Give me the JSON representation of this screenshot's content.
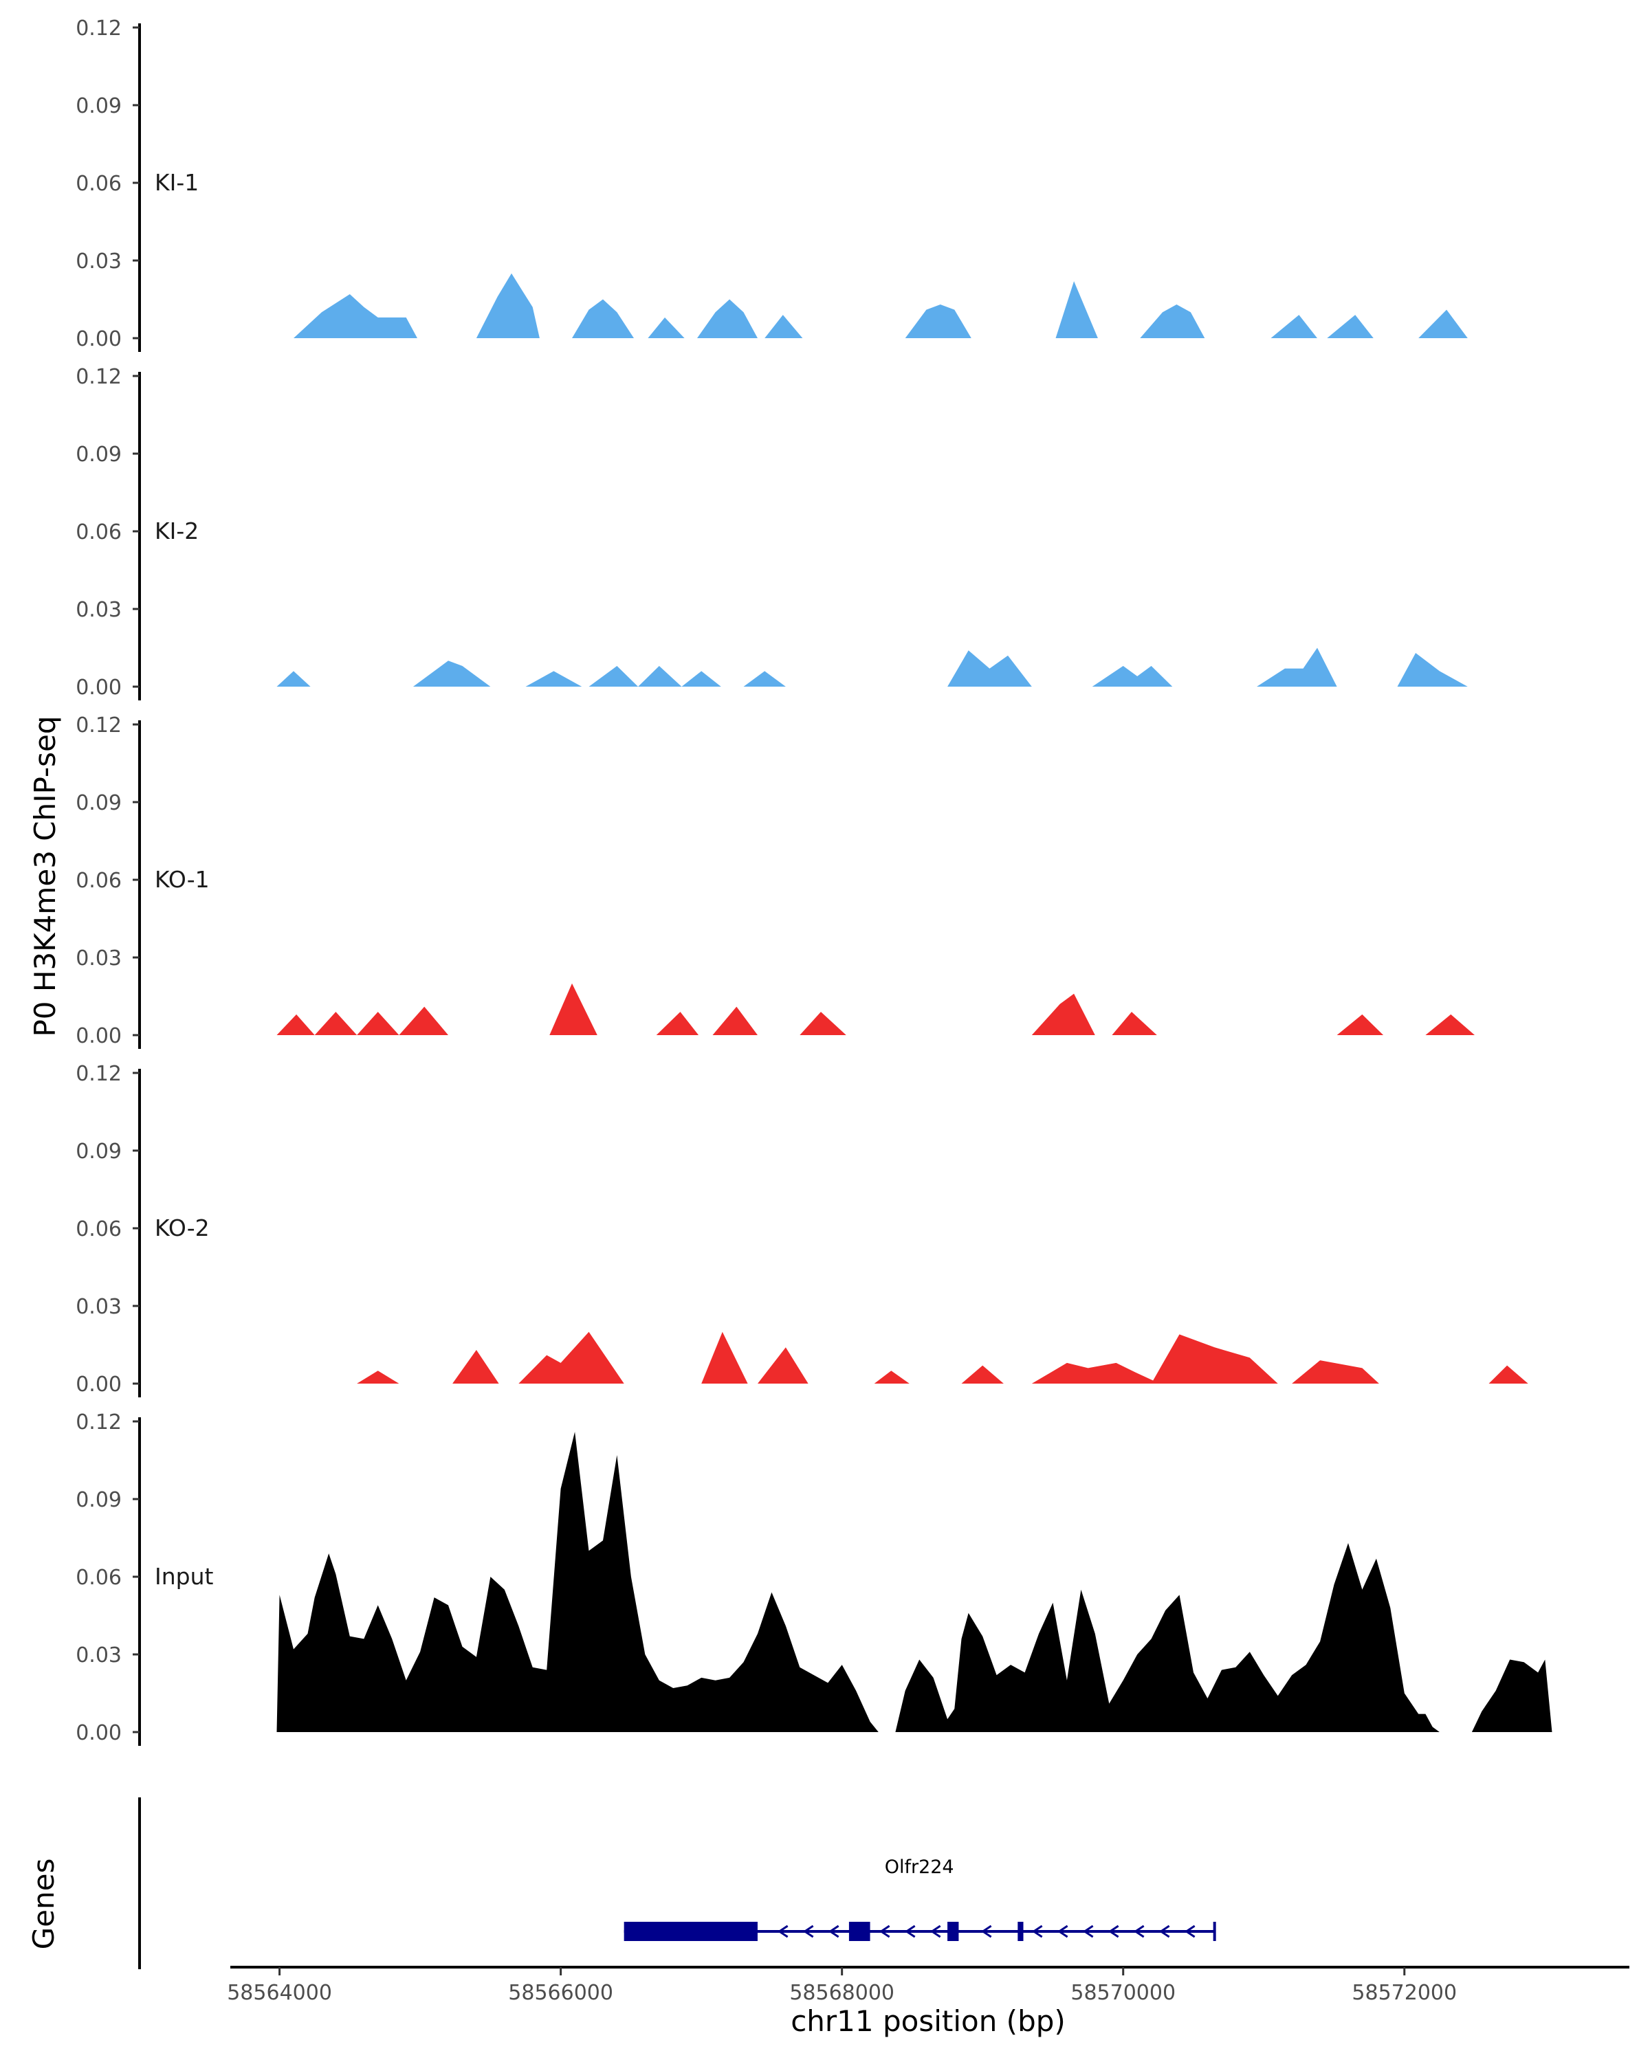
{
  "chart_data": {
    "type": "area",
    "ylabel": "P0 H3K4me3 ChIP-seq",
    "xlabel": "chr11 position (bp)",
    "xlim": [
      58563650,
      58573600
    ],
    "x_ticks": [
      58564000,
      58566000,
      58568000,
      58570000,
      58572000
    ],
    "x_tick_labels": [
      "58564000",
      "58566000",
      "58568000",
      "58570000",
      "58572000"
    ],
    "ylim": [
      0,
      0.12
    ],
    "y_ticks": [
      0.0,
      0.03,
      0.06,
      0.09,
      0.12
    ],
    "y_tick_labels": [
      "0.00",
      "0.03",
      "0.06",
      "0.09",
      "0.12"
    ],
    "series": [
      {
        "name": "KI-1",
        "color": "#5dadec",
        "peaks": [
          {
            "x": [
              58564100,
              58564300,
              58564500,
              58564600,
              58564700,
              58564900,
              58564980
            ],
            "y": [
              0,
              0.01,
              0.017,
              0.012,
              0.008,
              0.008,
              0
            ]
          },
          {
            "x": [
              58565400,
              58565550,
              58565650,
              58565800,
              58565850
            ],
            "y": [
              0,
              0.016,
              0.025,
              0.012,
              0
            ]
          },
          {
            "x": [
              58566080,
              58566200,
              58566300,
              58566400,
              58566520
            ],
            "y": [
              0,
              0.011,
              0.015,
              0.01,
              0
            ]
          },
          {
            "x": [
              58566620,
              58566740,
              58566880
            ],
            "y": [
              0,
              0.008,
              0
            ]
          },
          {
            "x": [
              58566970,
              58567100,
              58567200,
              58567300,
              58567400
            ],
            "y": [
              0,
              0.01,
              0.015,
              0.01,
              0
            ]
          },
          {
            "x": [
              58567450,
              58567580,
              58567720
            ],
            "y": [
              0,
              0.009,
              0
            ]
          },
          {
            "x": [
              58568450,
              58568600,
              58568700,
              58568800,
              58568920
            ],
            "y": [
              0,
              0.011,
              0.013,
              0.011,
              0
            ]
          },
          {
            "x": [
              58569520,
              58569650,
              58569820
            ],
            "y": [
              0,
              0.022,
              0
            ]
          },
          {
            "x": [
              58570120,
              58570280,
              58570380,
              58570480,
              58570580
            ],
            "y": [
              0,
              0.01,
              0.013,
              0.01,
              0
            ]
          },
          {
            "x": [
              58571050,
              58571250,
              58571380
            ],
            "y": [
              0,
              0.009,
              0
            ]
          },
          {
            "x": [
              58571450,
              58571650,
              58571780
            ],
            "y": [
              0,
              0.009,
              0
            ]
          },
          {
            "x": [
              58572100,
              58572300,
              58572450
            ],
            "y": [
              0,
              0.011,
              0
            ]
          }
        ]
      },
      {
        "name": "KI-2",
        "color": "#5dadec",
        "peaks": [
          {
            "x": [
              58563980,
              58564100,
              58564220
            ],
            "y": [
              0,
              0.006,
              0
            ]
          },
          {
            "x": [
              58564950,
              58565200,
              58565300,
              58565500
            ],
            "y": [
              0,
              0.01,
              0.008,
              0
            ]
          },
          {
            "x": [
              58565750,
              58565950,
              58566150
            ],
            "y": [
              0,
              0.006,
              0
            ]
          },
          {
            "x": [
              58566200,
              58566400,
              58566550
            ],
            "y": [
              0,
              0.008,
              0
            ]
          },
          {
            "x": [
              58566550,
              58566700,
              58566860
            ],
            "y": [
              0,
              0.008,
              0
            ]
          },
          {
            "x": [
              58566860,
              58567000,
              58567140
            ],
            "y": [
              0,
              0.006,
              0
            ]
          },
          {
            "x": [
              58567300,
              58567450,
              58567600
            ],
            "y": [
              0,
              0.006,
              0
            ]
          },
          {
            "x": [
              58568750,
              58568900,
              58569050,
              58569180,
              58569350
            ],
            "y": [
              0,
              0.014,
              0.007,
              0.012,
              0
            ]
          },
          {
            "x": [
              58569780,
              58570000,
              58570100,
              58570200,
              58570350
            ],
            "y": [
              0,
              0.008,
              0.004,
              0.008,
              0
            ]
          },
          {
            "x": [
              58570950,
              58571150,
              58571280,
              58571380,
              58571520
            ],
            "y": [
              0,
              0.007,
              0.007,
              0.015,
              0
            ]
          },
          {
            "x": [
              58571950,
              58572080,
              58572250,
              58572450
            ],
            "y": [
              0,
              0.013,
              0.006,
              0
            ]
          }
        ]
      },
      {
        "name": "KO-1",
        "color": "#ee2b2b",
        "peaks": [
          {
            "x": [
              58563980,
              58564120,
              58564250
            ],
            "y": [
              0,
              0.008,
              0
            ]
          },
          {
            "x": [
              58564250,
              58564400,
              58564550
            ],
            "y": [
              0,
              0.009,
              0
            ]
          },
          {
            "x": [
              58564550,
              58564700,
              58564850
            ],
            "y": [
              0,
              0.009,
              0
            ]
          },
          {
            "x": [
              58564850,
              58565030,
              58565200
            ],
            "y": [
              0,
              0.011,
              0
            ]
          },
          {
            "x": [
              58565920,
              58566080,
              58566260
            ],
            "y": [
              0,
              0.02,
              0
            ]
          },
          {
            "x": [
              58566680,
              58566850,
              58566980
            ],
            "y": [
              0,
              0.009,
              0
            ]
          },
          {
            "x": [
              58567080,
              58567250,
              58567400
            ],
            "y": [
              0,
              0.011,
              0
            ]
          },
          {
            "x": [
              58567700,
              58567850,
              58568030
            ],
            "y": [
              0,
              0.009,
              0
            ]
          },
          {
            "x": [
              58569350,
              58569550,
              58569650,
              58569800
            ],
            "y": [
              0,
              0.012,
              0.016,
              0
            ]
          },
          {
            "x": [
              58569920,
              58570060,
              58570240
            ],
            "y": [
              0,
              0.009,
              0
            ]
          },
          {
            "x": [
              58571520,
              58571700,
              58571850
            ],
            "y": [
              0,
              0.008,
              0
            ]
          },
          {
            "x": [
              58572150,
              58572330,
              58572500
            ],
            "y": [
              0,
              0.008,
              0
            ]
          }
        ]
      },
      {
        "name": "KO-2",
        "color": "#ee2b2b",
        "peaks": [
          {
            "x": [
              58564550,
              58564700,
              58564850
            ],
            "y": [
              0,
              0.005,
              0
            ]
          },
          {
            "x": [
              58565230,
              58565400,
              58565560
            ],
            "y": [
              0,
              0.013,
              0
            ]
          },
          {
            "x": [
              58565700,
              58565900,
              58566000,
              58566200,
              58566450
            ],
            "y": [
              0,
              0.011,
              0.008,
              0.02,
              0
            ]
          },
          {
            "x": [
              58567000,
              58567150,
              58567330
            ],
            "y": [
              0,
              0.02,
              0
            ]
          },
          {
            "x": [
              58567400,
              58567600,
              58567760
            ],
            "y": [
              0,
              0.014,
              0
            ]
          },
          {
            "x": [
              58568230,
              58568350,
              58568480
            ],
            "y": [
              0,
              0.005,
              0
            ]
          },
          {
            "x": [
              58568850,
              58569000,
              58569150
            ],
            "y": [
              0,
              0.007,
              0
            ]
          },
          {
            "x": [
              58569350,
              58569600,
              58569750,
              58569950,
              58570100,
              58570260
            ],
            "y": [
              0,
              0.008,
              0.006,
              0.008,
              0.004,
              0
            ]
          },
          {
            "x": [
              58570200,
              58570400,
              58570650,
              58570900,
              58571100
            ],
            "y": [
              0,
              0.019,
              0.014,
              0.01,
              0
            ]
          },
          {
            "x": [
              58571200,
              58571400,
              58571700,
              58571820
            ],
            "y": [
              0,
              0.009,
              0.006,
              0
            ]
          },
          {
            "x": [
              58572600,
              58572730,
              58572880
            ],
            "y": [
              0,
              0.007,
              0
            ]
          }
        ]
      },
      {
        "name": "Input",
        "color": "#000000",
        "peaks": [
          {
            "x": [
              58563980,
              58564000,
              58564100,
              58564200,
              58564250,
              58564350,
              58564400,
              58564500,
              58564600,
              58564700,
              58564800,
              58564900,
              58565000,
              58565100,
              58565200,
              58565250,
              58565300,
              58565400,
              58565500,
              58565600,
              58565700,
              58565800,
              58565900,
              58566000,
              58566100,
              58566200,
              58566300,
              58566400,
              58566500,
              58566600,
              58566700,
              58566800,
              58566900,
              58567000,
              58567100,
              58567200,
              58567300,
              58567400,
              58567500,
              58567600,
              58567700,
              58567800,
              58567900,
              58568000,
              58568100,
              58568200,
              58568260
            ],
            "y": [
              0,
              0.053,
              0.032,
              0.038,
              0.052,
              0.069,
              0.061,
              0.037,
              0.036,
              0.049,
              0.036,
              0.02,
              0.031,
              0.052,
              0.049,
              0.041,
              0.033,
              0.029,
              0.06,
              0.055,
              0.041,
              0.025,
              0.024,
              0.094,
              0.116,
              0.07,
              0.074,
              0.107,
              0.06,
              0.03,
              0.02,
              0.017,
              0.018,
              0.021,
              0.02,
              0.021,
              0.027,
              0.038,
              0.054,
              0.041,
              0.025,
              0.022,
              0.019,
              0.026,
              0.016,
              0.004,
              0
            ]
          },
          {
            "x": [
              58568380,
              58568450,
              58568550,
              58568650,
              58568750,
              58568800,
              58568850,
              58568900,
              58569000,
              58569100,
              58569200,
              58569300,
              58569400,
              58569500,
              58569600,
              58569700,
              58569800,
              58569900,
              58570000,
              58570100,
              58570200,
              58570300,
              58570400,
              58570500,
              58570600,
              58570700,
              58570800,
              58570900,
              58571000,
              58571100,
              58571200,
              58571300,
              58571400,
              58571500,
              58571600,
              58571700,
              58571800,
              58571900,
              58572000,
              58572100,
              58572150,
              58572200,
              58572250
            ],
            "y": [
              0,
              0.016,
              0.028,
              0.021,
              0.005,
              0.009,
              0.036,
              0.046,
              0.037,
              0.022,
              0.026,
              0.023,
              0.038,
              0.05,
              0.02,
              0.055,
              0.038,
              0.011,
              0.02,
              0.03,
              0.036,
              0.047,
              0.053,
              0.023,
              0.013,
              0.024,
              0.025,
              0.031,
              0.022,
              0.014,
              0.022,
              0.026,
              0.035,
              0.057,
              0.073,
              0.055,
              0.067,
              0.048,
              0.015,
              0.007,
              0.007,
              0.002,
              0
            ]
          },
          {
            "x": [
              58572480,
              58572550,
              58572650,
              58572750,
              58572850,
              58572950,
              58573000,
              58573050
            ],
            "y": [
              0,
              0.008,
              0.016,
              0.028,
              0.027,
              0.023,
              0.028,
              0
            ]
          }
        ]
      }
    ],
    "genes": [
      {
        "name": "Olfr224",
        "strand": "-",
        "start": 58566450,
        "end": 58570650,
        "exons": [
          [
            58566450,
            58567400
          ],
          [
            58568050,
            58568200
          ],
          [
            58568750,
            58568830
          ],
          [
            58569250,
            58569290
          ]
        ]
      }
    ],
    "gene_track_label": "Genes"
  }
}
